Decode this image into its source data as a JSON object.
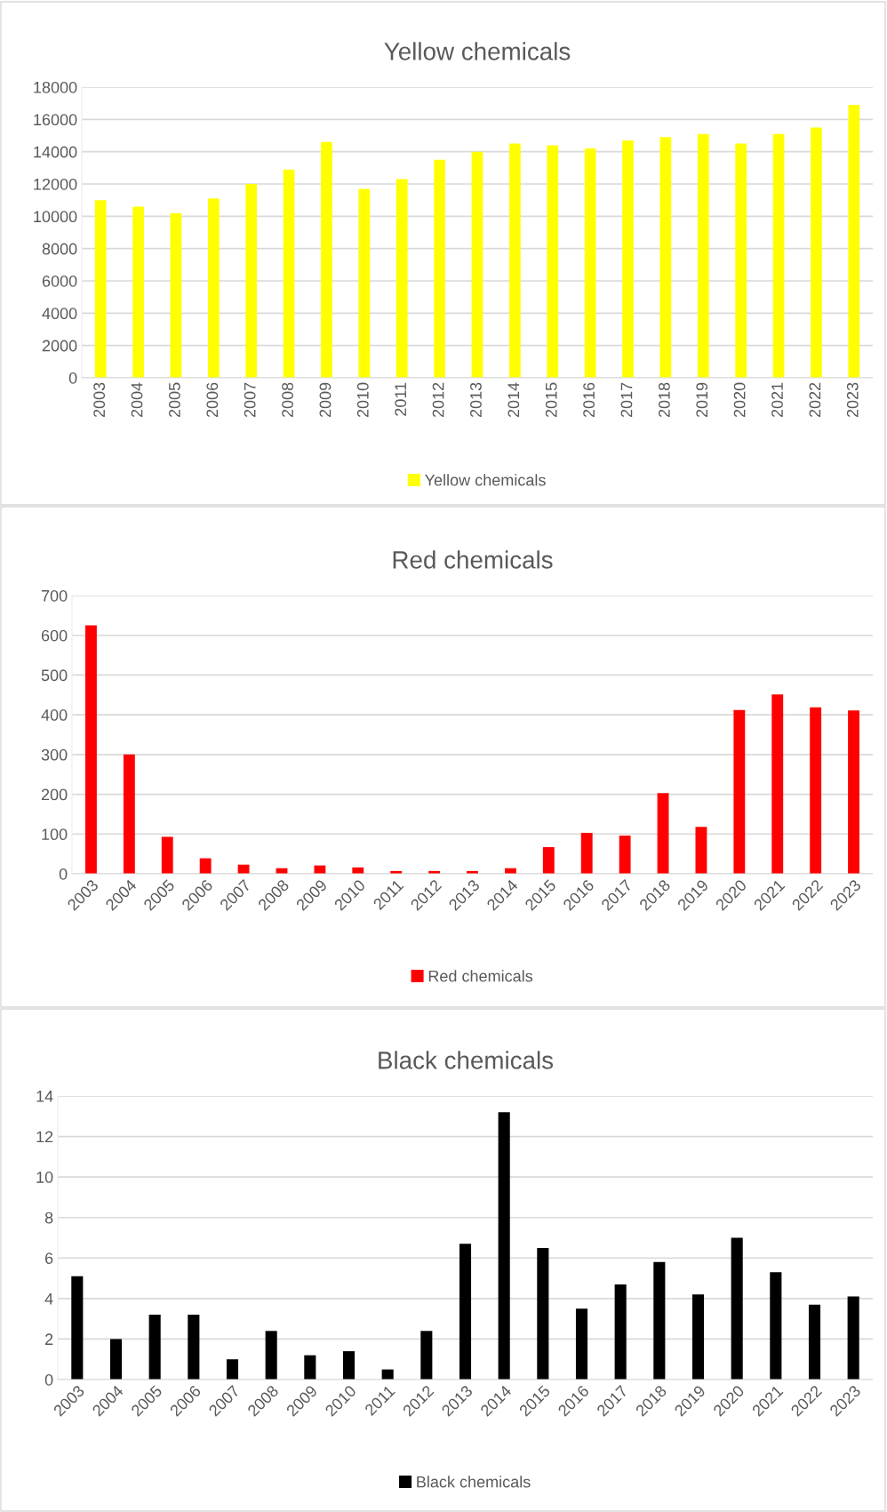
{
  "chart_data": [
    {
      "type": "bar",
      "title": "Yellow chemicals",
      "categories": [
        "2003",
        "2004",
        "2005",
        "2006",
        "2007",
        "2008",
        "2009",
        "2010",
        "2011",
        "2012",
        "2013",
        "2014",
        "2015",
        "2016",
        "2017",
        "2018",
        "2019",
        "2020",
        "2021",
        "2022",
        "2023"
      ],
      "series": [
        {
          "name": "Yellow chemicals",
          "color": "#ffff00",
          "values": [
            11000,
            10600,
            10200,
            11100,
            12000,
            12900,
            14600,
            11700,
            12300,
            13500,
            14000,
            14500,
            14400,
            14200,
            14700,
            14900,
            15100,
            14500,
            15100,
            15500,
            16900
          ]
        }
      ],
      "ylim": [
        0,
        18000
      ],
      "yticks": [
        0,
        2000,
        4000,
        6000,
        8000,
        10000,
        12000,
        14000,
        16000,
        18000
      ],
      "grid": "y",
      "legend": "bottom"
    },
    {
      "type": "bar",
      "title": "Red chemicals",
      "categories": [
        "2003",
        "2004",
        "2005",
        "2006",
        "2007",
        "2008",
        "2009",
        "2010",
        "2011",
        "2012",
        "2013",
        "2014",
        "2015",
        "2016",
        "2017",
        "2018",
        "2019",
        "2020",
        "2021",
        "2022",
        "2023"
      ],
      "series": [
        {
          "name": "Red chemicals",
          "color": "#ff0000",
          "values": [
            625,
            300,
            93,
            39,
            23,
            14,
            21,
            16,
            7,
            7,
            7,
            14,
            67,
            103,
            96,
            203,
            118,
            412,
            451,
            419,
            411
          ]
        }
      ],
      "ylim": [
        0,
        700
      ],
      "yticks": [
        0,
        100,
        200,
        300,
        400,
        500,
        600,
        700
      ],
      "grid": "y",
      "legend": "bottom"
    },
    {
      "type": "bar",
      "title": "Black chemicals",
      "categories": [
        "2003",
        "2004",
        "2005",
        "2006",
        "2007",
        "2008",
        "2009",
        "2010",
        "2011",
        "2012",
        "2013",
        "2014",
        "2015",
        "2016",
        "2017",
        "2018",
        "2019",
        "2020",
        "2021",
        "2022",
        "2023"
      ],
      "series": [
        {
          "name": "Black chemicals",
          "color": "#000000",
          "values": [
            5.1,
            2.0,
            3.2,
            3.2,
            1.0,
            2.4,
            1.2,
            1.4,
            0.5,
            2.4,
            6.7,
            13.2,
            6.5,
            3.5,
            4.7,
            5.8,
            4.2,
            7.0,
            5.3,
            3.7,
            4.1
          ]
        }
      ],
      "ylim": [
        0,
        14
      ],
      "yticks": [
        0,
        2,
        4,
        6,
        8,
        10,
        12,
        14
      ],
      "grid": "y",
      "legend": "bottom"
    }
  ]
}
